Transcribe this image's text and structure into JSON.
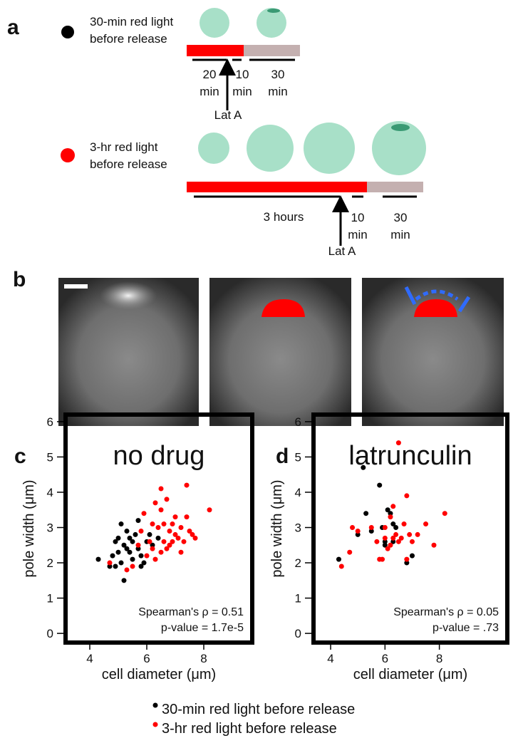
{
  "panel_labels": [
    "a",
    "b",
    "c",
    "d"
  ],
  "panel_a": {
    "row1": {
      "label": [
        "30-min red light",
        "before release"
      ],
      "durations": [
        [
          "20",
          "min"
        ],
        [
          "10",
          "min"
        ],
        [
          "30",
          "min"
        ]
      ],
      "drug": "Lat A"
    },
    "row2": {
      "label": [
        "3-hr red light",
        "before release"
      ],
      "durations": [
        [
          "3 hours"
        ],
        [
          "10",
          "min"
        ],
        [
          "30",
          "min"
        ]
      ],
      "drug": "Lat A"
    }
  },
  "chart_data": [
    {
      "type": "scatter",
      "title": "no drug",
      "x_label": "cell diameter (μm)",
      "y_label": "pole width (μm)",
      "xlim": [
        3.15,
        9.7
      ],
      "ylim": [
        -0.26,
        6.2
      ],
      "xticks": [
        4,
        6,
        8
      ],
      "yticks": [
        0,
        1,
        2,
        3,
        4,
        5,
        6
      ],
      "annotations": [
        "Spearman's ρ = 0.51",
        "p-value = 1.7e-5"
      ],
      "series": [
        {
          "name": "30-min red light before release",
          "color": "#000000",
          "x": [
            4.3,
            4.7,
            4.8,
            4.9,
            5.0,
            5.0,
            5.1,
            5.1,
            5.2,
            5.2,
            5.3,
            5.4,
            5.4,
            5.5,
            5.5,
            5.6,
            5.7,
            5.7,
            5.8,
            5.8,
            5.9,
            6.0,
            6.1,
            6.2,
            6.4,
            5.3,
            4.9
          ],
          "y": [
            2.1,
            1.9,
            2.2,
            2.6,
            2.7,
            2.3,
            3.1,
            2.0,
            2.5,
            1.5,
            2.9,
            2.7,
            2.3,
            2.6,
            2.1,
            2.8,
            2.4,
            3.2,
            1.9,
            2.2,
            2.0,
            2.6,
            2.8,
            2.5,
            2.7,
            2.4,
            1.9
          ]
        },
        {
          "name": "3-hr red light before release",
          "color": "#ff0000",
          "x": [
            4.7,
            5.5,
            5.3,
            5.7,
            5.8,
            5.9,
            6.0,
            6.1,
            6.2,
            6.2,
            6.3,
            6.3,
            6.4,
            6.5,
            6.5,
            6.6,
            6.6,
            6.7,
            6.7,
            6.8,
            6.8,
            6.9,
            6.9,
            7.0,
            7.0,
            7.1,
            7.2,
            7.3,
            7.4,
            7.4,
            7.5,
            7.6,
            7.7,
            8.2,
            6.5,
            7.2
          ],
          "y": [
            2.0,
            1.9,
            1.8,
            2.5,
            2.9,
            3.4,
            2.2,
            2.6,
            3.1,
            2.4,
            3.7,
            2.1,
            3.0,
            4.1,
            3.5,
            3.1,
            2.6,
            2.4,
            3.8,
            2.9,
            2.5,
            3.1,
            2.6,
            3.3,
            2.8,
            2.7,
            3.0,
            2.6,
            3.3,
            4.2,
            2.9,
            2.8,
            2.7,
            3.5,
            2.3,
            2.3
          ]
        }
      ]
    },
    {
      "type": "scatter",
      "title": "latrunculin",
      "x_label": "cell diameter (μm)",
      "y_label": "pole width (μm)",
      "xlim": [
        3.37,
        10.5
      ],
      "ylim": [
        -0.26,
        6.2
      ],
      "xticks": [
        4,
        6,
        8
      ],
      "yticks": [
        0,
        1,
        2,
        3,
        4,
        5,
        6
      ],
      "annotations": [
        "Spearman's ρ = 0.05",
        "p-value = .73"
      ],
      "series": [
        {
          "name": "30-min red light before release",
          "color": "#000000",
          "x": [
            4.3,
            5.0,
            5.2,
            5.3,
            5.5,
            5.8,
            5.9,
            6.0,
            6.0,
            6.1,
            6.2,
            6.3,
            6.4,
            6.8,
            7.0,
            6.3
          ],
          "y": [
            2.1,
            2.8,
            4.7,
            3.4,
            2.9,
            4.2,
            3.0,
            2.6,
            2.5,
            3.5,
            3.4,
            2.6,
            3.0,
            2.0,
            2.2,
            3.1
          ]
        },
        {
          "name": "3-hr red light before release",
          "color": "#ff0000",
          "x": [
            4.4,
            4.8,
            4.7,
            5.0,
            5.5,
            5.8,
            5.9,
            6.0,
            6.0,
            6.2,
            6.2,
            6.3,
            6.4,
            6.5,
            6.5,
            6.6,
            6.7,
            6.8,
            6.8,
            6.9,
            7.0,
            7.2,
            7.5,
            7.8,
            8.2,
            5.7,
            6.1,
            6.3
          ],
          "y": [
            1.9,
            3.0,
            2.3,
            2.9,
            3.0,
            2.1,
            2.1,
            3.0,
            2.7,
            2.5,
            3.3,
            2.7,
            2.8,
            5.4,
            2.6,
            2.7,
            3.1,
            3.9,
            2.1,
            2.8,
            2.6,
            2.8,
            3.1,
            2.5,
            3.4,
            2.6,
            2.4,
            3.6
          ]
        }
      ]
    }
  ]
}
